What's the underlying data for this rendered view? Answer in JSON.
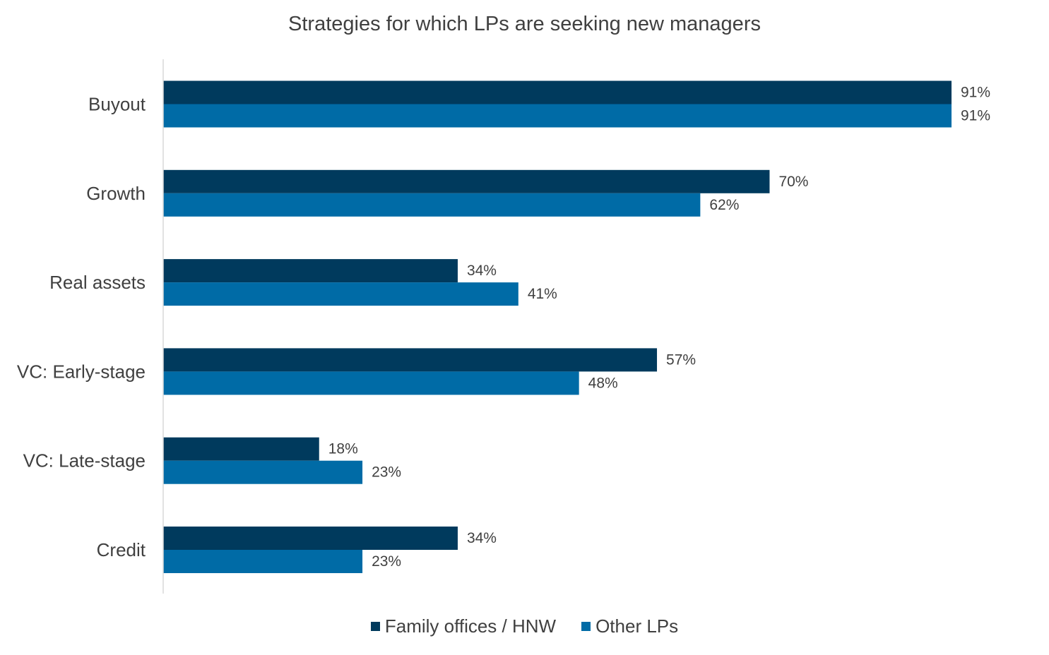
{
  "chart_data": {
    "type": "bar",
    "orientation": "horizontal",
    "title": "Strategies for which LPs are seeking new managers",
    "categories": [
      "Buyout",
      "Growth",
      "Real assets",
      "VC: Early-stage",
      "VC: Late-stage",
      "Credit"
    ],
    "series": [
      {
        "name": "Family offices / HNW",
        "color": "#003A5D",
        "values": [
          91,
          70,
          34,
          57,
          18,
          34
        ],
        "labels": [
          "91%",
          "70%",
          "34%",
          "57%",
          "18%",
          "34%"
        ]
      },
      {
        "name": "Other LPs",
        "color": "#006BA6",
        "values": [
          91,
          62,
          41,
          48,
          23,
          23
        ],
        "labels": [
          "91%",
          "62%",
          "41%",
          "48%",
          "23%",
          "23%"
        ]
      }
    ],
    "xlim": [
      0,
      100
    ],
    "grid": false,
    "legend_position": "bottom",
    "axis_color": "#d9d9d9"
  }
}
